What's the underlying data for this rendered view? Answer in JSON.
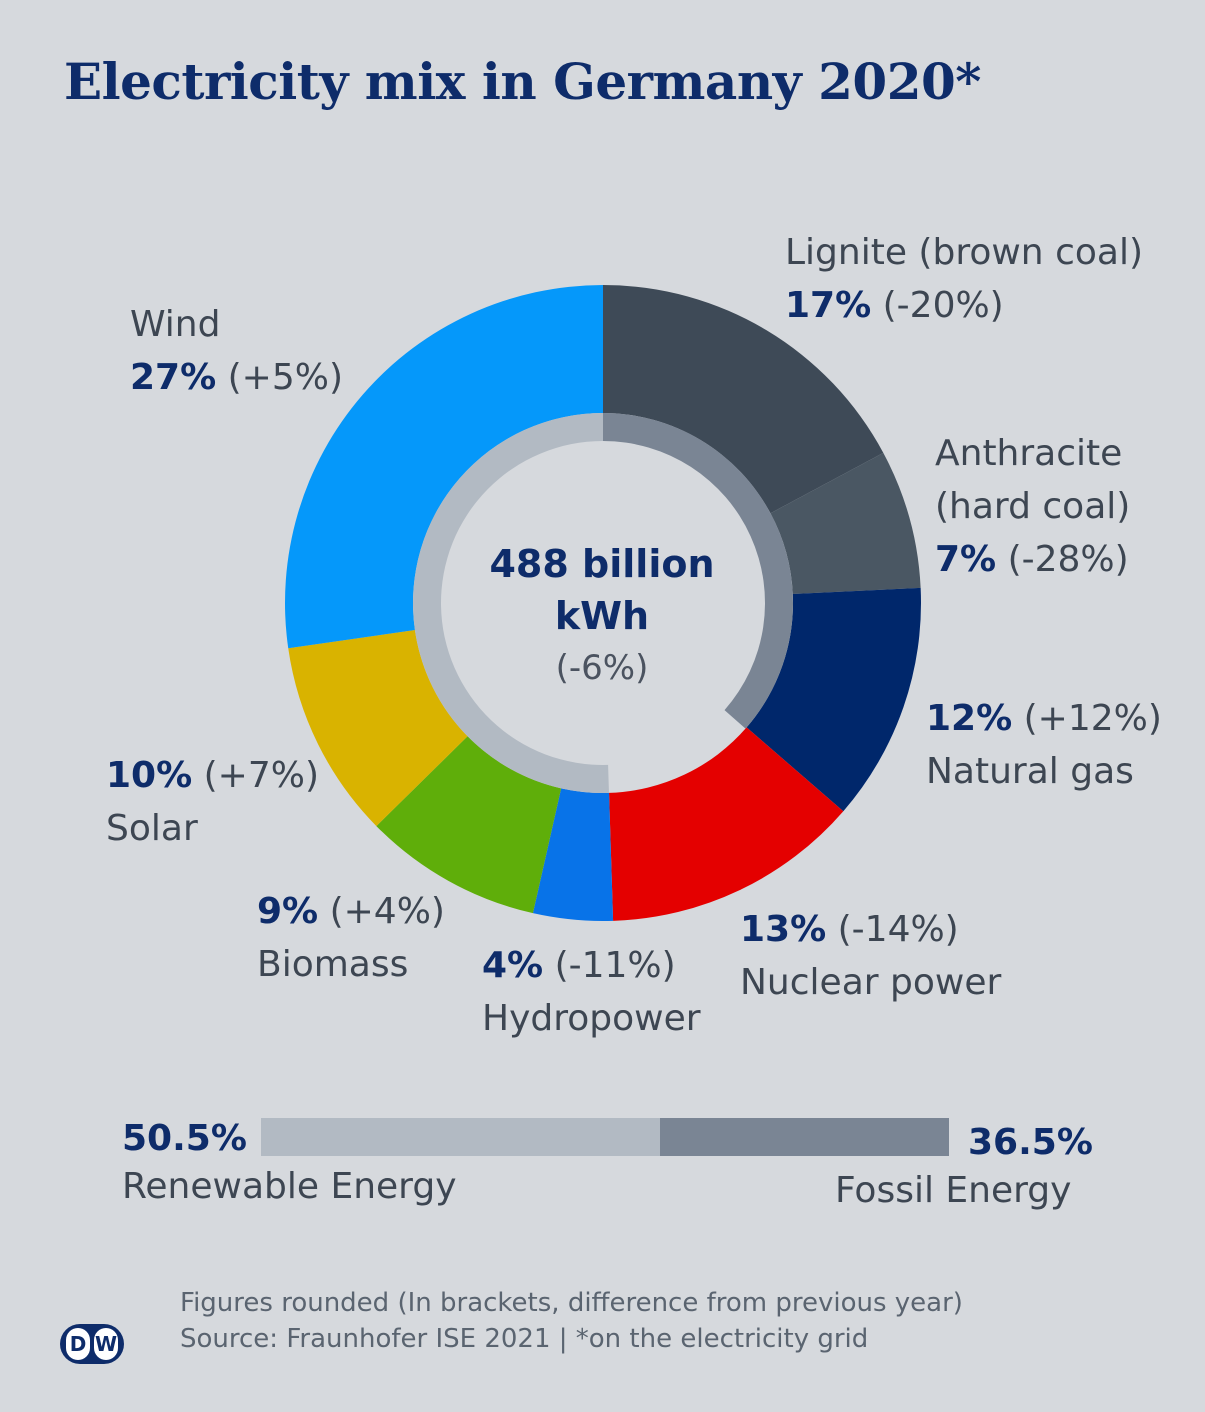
{
  "title": "Electricity mix in Germany 2020*",
  "center": {
    "total": "488 billion kWh",
    "change": "(-6%)"
  },
  "chart_data": {
    "type": "pie",
    "title": "Electricity mix in Germany 2020*",
    "unit": "%",
    "slices": [
      {
        "name": "Lignite (brown coal)",
        "value": 17,
        "change": "(-20%)",
        "pct_label": "17%",
        "color": "#3e4a57"
      },
      {
        "name": "Anthracite (hard coal)",
        "value": 7,
        "change": "(-28%)",
        "pct_label": "7%",
        "color": "#4a5763"
      },
      {
        "name": "Natural gas",
        "value": 12,
        "change": "(+12%)",
        "pct_label": "12%",
        "color": "#00276b"
      },
      {
        "name": "Nuclear power",
        "value": 13,
        "change": "(-14%)",
        "pct_label": "13%",
        "color": "#e40000"
      },
      {
        "name": "Hydropower",
        "value": 4,
        "change": "(-11%)",
        "pct_label": "4%",
        "color": "#0873e8"
      },
      {
        "name": "Biomass",
        "value": 9,
        "change": "(+4%)",
        "pct_label": "9%",
        "color": "#5fae0a"
      },
      {
        "name": "Solar",
        "value": 10,
        "change": "(+7%)",
        "pct_label": "10%",
        "color": "#d9b300"
      },
      {
        "name": "Wind",
        "value": 27,
        "change": "(+5%)",
        "pct_label": "27%",
        "color": "#0598fa"
      }
    ],
    "inner_ring": [
      {
        "name": "Fossil Energy",
        "value": 36.5,
        "color": "#7a8594"
      },
      {
        "name": "Renewable Energy",
        "value": 50.5,
        "color": "#b2bac3"
      }
    ]
  },
  "labels": {
    "lignite": {
      "line1": "Lignite (brown coal)",
      "pct": "17%",
      "chg": "(-20%)"
    },
    "anthracite": {
      "line1": "Anthracite",
      "line2": "(hard coal)",
      "pct": "7%",
      "chg": "(-28%)"
    },
    "gas": {
      "pct": "12%",
      "chg": "(+12%)",
      "name": "Natural gas"
    },
    "nuclear": {
      "pct": "13%",
      "chg": "(-14%)",
      "name": "Nuclear power"
    },
    "hydro": {
      "pct": "4%",
      "chg": "(-11%)",
      "name": "Hydropower"
    },
    "biomass": {
      "pct": "9%",
      "chg": "(+4%)",
      "name": "Biomass"
    },
    "solar": {
      "pct": "10%",
      "chg": "(+7%)",
      "name": "Solar"
    },
    "wind": {
      "name": "Wind",
      "pct": "27%",
      "chg": "(+5%)"
    }
  },
  "summary": {
    "renewable": {
      "pct": "50.5%",
      "label": "Renewable Energy",
      "value": 50.5,
      "color": "#b2bac3"
    },
    "fossil": {
      "pct": "36.5%",
      "label": "Fossil Energy",
      "value": 36.5,
      "color": "#7a8594"
    }
  },
  "footnote": {
    "line1": "Figures rounded (In brackets, difference from previous year)",
    "line2": "Source: Fraunhofer ISE 2021 | *on the electricity grid"
  },
  "logo": {
    "left": "D",
    "right": "W"
  }
}
